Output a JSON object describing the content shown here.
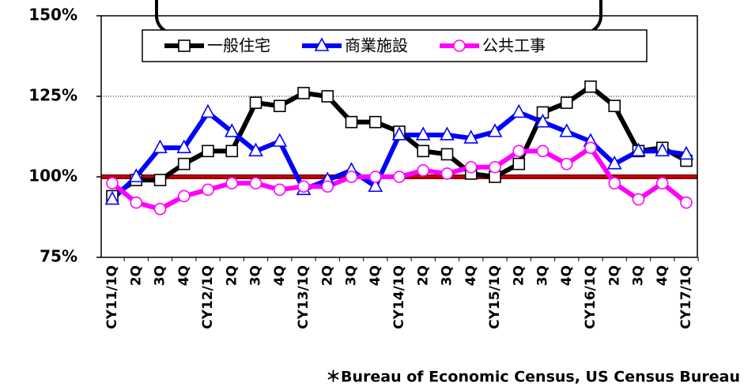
{
  "chart_data": {
    "type": "line",
    "categories": [
      "CY11/1Q",
      "2Q",
      "3Q",
      "4Q",
      "CY12/1Q",
      "2Q",
      "3Q",
      "4Q",
      "CY13/1Q",
      "2Q",
      "3Q",
      "4Q",
      "CY14/1Q",
      "2Q",
      "3Q",
      "4Q",
      "CY15/1Q",
      "2Q",
      "3Q",
      "4Q",
      "CY16/1Q",
      "2Q",
      "3Q",
      "4Q",
      "CY17/1Q"
    ],
    "series": [
      {
        "name": "一般住宅",
        "color": "#000000",
        "marker": "square",
        "values": [
          94,
          99,
          99,
          104,
          108,
          108,
          123,
          122,
          126,
          125,
          117,
          117,
          114,
          108,
          107,
          101,
          100,
          104,
          120,
          123,
          128,
          122,
          108,
          109,
          105
        ]
      },
      {
        "name": "商業施設",
        "color": "#0000ff",
        "marker": "triangle",
        "values": [
          93,
          100,
          109,
          109,
          120,
          114,
          108,
          111,
          96,
          99,
          102,
          97,
          113,
          113,
          113,
          112,
          114,
          120,
          117,
          114,
          111,
          104,
          108,
          108,
          107
        ]
      },
      {
        "name": "公共工事",
        "color": "#ff00ff",
        "marker": "circle",
        "values": [
          98,
          92,
          90,
          94,
          96,
          98,
          98,
          96,
          97,
          97,
          100,
          100,
          100,
          102,
          101,
          103,
          103,
          108,
          108,
          104,
          109,
          98,
          93,
          98,
          92
        ]
      }
    ],
    "ylim": [
      75,
      150
    ],
    "yticks": [
      {
        "value": 75,
        "label": "75%"
      },
      {
        "value": 100,
        "label": "100%"
      },
      {
        "value": 125,
        "label": "125%"
      },
      {
        "value": 150,
        "label": "150%"
      }
    ],
    "grid": true,
    "reference_line": {
      "value": 100,
      "color": "#cc0000"
    },
    "legend": "top",
    "source": "＊Bureau of Economic Census, US Census Bureau"
  }
}
